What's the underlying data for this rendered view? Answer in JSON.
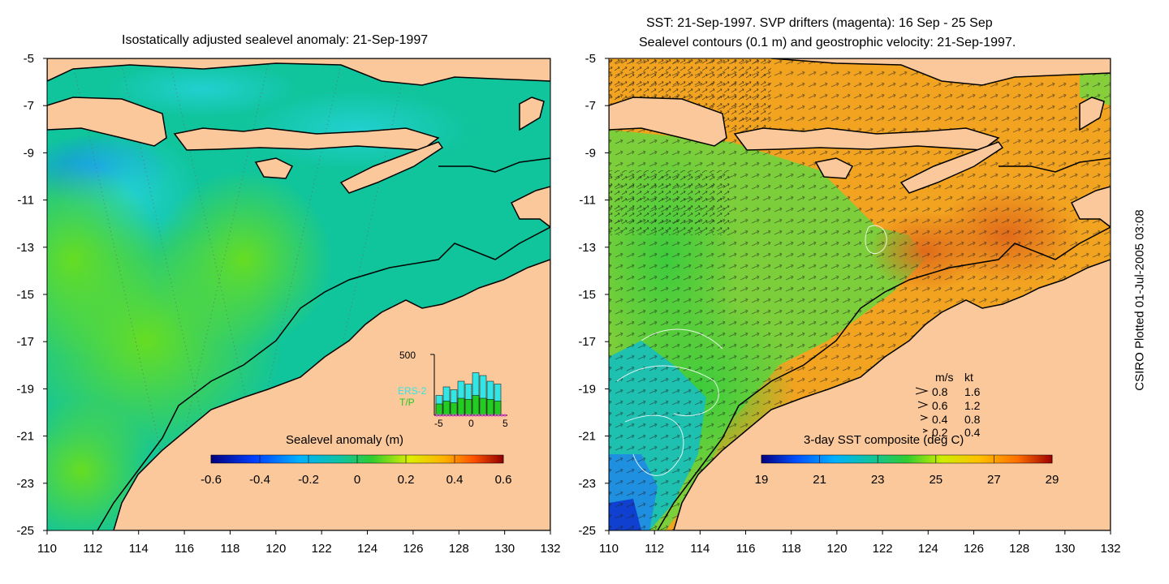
{
  "left_panel": {
    "title": "Isostatically adjusted sealevel anomaly: 21-Sep-1997",
    "colorbar": {
      "label": "Sealevel anomaly (m)",
      "ticks": [
        "-0.6",
        "-0.4",
        "-0.2",
        "0",
        "0.2",
        "0.4",
        "0.6"
      ]
    },
    "inset": {
      "ymax_label": "500",
      "legend": [
        "ERS-2",
        "T/P"
      ],
      "xticks": [
        "-5",
        "0",
        "5"
      ],
      "colors": {
        "ers2": "#33e5e5",
        "tp": "#22cc22",
        "marker": "#ff33ff"
      }
    }
  },
  "right_panel": {
    "title_line1": "SST: 21-Sep-1997. SVP drifters (magenta): 16 Sep - 25 Sep",
    "title_line2": "Sealevel contours (0.1 m) and geostrophic velocity: 21-Sep-1997.",
    "colorbar": {
      "label": "3-day SST composite (deg C)",
      "ticks": [
        "19",
        "21",
        "23",
        "25",
        "27",
        "29"
      ]
    },
    "velocity_legend": {
      "header_ms": "m/s",
      "header_kt": "kt",
      "rows": [
        {
          "ms": "0.8",
          "kt": "1.6"
        },
        {
          "ms": "0.6",
          "kt": "1.2"
        },
        {
          "ms": "0.4",
          "kt": "0.8"
        },
        {
          "ms": "0.2",
          "kt": "0.4"
        }
      ]
    }
  },
  "axes": {
    "x_labels": [
      "110",
      "112",
      "114",
      "116",
      "118",
      "120",
      "122",
      "124",
      "126",
      "128",
      "130",
      "132"
    ],
    "y_labels": [
      "-5",
      "-7",
      "-9",
      "-11",
      "-13",
      "-15",
      "-17",
      "-19",
      "-21",
      "-23",
      "-25"
    ],
    "lon_range": [
      110,
      132
    ],
    "lat_range": [
      -25,
      -5
    ]
  },
  "footer": {
    "plotted_note": "CSIRO Plotted 01-Jul-2005 03:08"
  },
  "colors": {
    "land": "#fac89a",
    "coast": "#000000",
    "sla_base": "#10c49c",
    "sst_base": "#f2a320"
  }
}
